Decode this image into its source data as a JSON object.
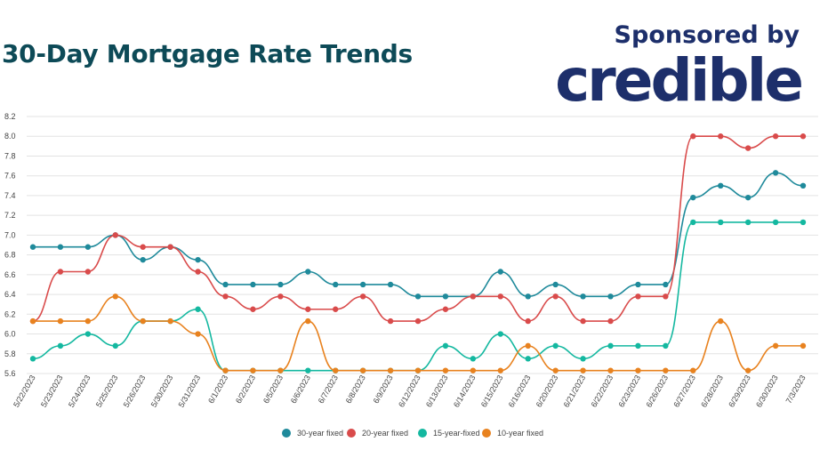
{
  "header": {
    "title": "30-Day Mortgage Rate Trends",
    "sponsor_text": "Sponsored by",
    "logo_text": "credible"
  },
  "chart_data": {
    "type": "line",
    "title": "30-Day Mortgage Rate Trends",
    "xlabel": "",
    "ylabel": "",
    "ylim": [
      5.6,
      8.2
    ],
    "yticks": [
      "8.2",
      "8.0",
      "7.8",
      "7.6",
      "7.4",
      "7.2",
      "7.0",
      "6.8",
      "6.6",
      "6.4",
      "6.2",
      "6.0",
      "5.8",
      "5.6"
    ],
    "grid": true,
    "legend_position": "bottom",
    "categories": [
      "5/22/2023",
      "5/23/2023",
      "5/24/2023",
      "5/25/2023",
      "5/26/2023",
      "5/30/2023",
      "5/31/2023",
      "6/1/2023",
      "6/2/2023",
      "6/5/2023",
      "6/6/2023",
      "6/7/2023",
      "6/8/2023",
      "6/9/2023",
      "6/12/2023",
      "6/13/2023",
      "6/14/2023",
      "6/15/2023",
      "6/16/2023",
      "6/20/2023",
      "6/21/2023",
      "6/22/2023",
      "6/23/2023",
      "6/26/2023",
      "6/27/2023",
      "6/28/2023",
      "6/29/2023",
      "6/30/2023",
      "7/3/2023"
    ],
    "series": [
      {
        "name": "30-year fixed",
        "color": "#1f8a9b",
        "values": [
          6.88,
          6.88,
          6.88,
          7.0,
          6.75,
          6.88,
          6.75,
          6.5,
          6.5,
          6.5,
          6.63,
          6.5,
          6.5,
          6.5,
          6.38,
          6.38,
          6.38,
          6.63,
          6.38,
          6.5,
          6.38,
          6.38,
          6.5,
          6.5,
          7.38,
          7.5,
          7.38,
          7.63,
          7.5
        ]
      },
      {
        "name": "20-year fixed",
        "color": "#d94b4b",
        "values": [
          6.13,
          6.63,
          6.63,
          7.0,
          6.88,
          6.88,
          6.63,
          6.38,
          6.25,
          6.38,
          6.25,
          6.25,
          6.38,
          6.13,
          6.13,
          6.25,
          6.38,
          6.38,
          6.13,
          6.38,
          6.13,
          6.13,
          6.38,
          6.38,
          8.0,
          8.0,
          7.88,
          8.0,
          8.0
        ]
      },
      {
        "name": "15-year-fixed",
        "color": "#14b8a0",
        "values": [
          5.75,
          5.88,
          6.0,
          5.88,
          6.13,
          6.13,
          6.25,
          5.63,
          5.63,
          5.63,
          5.63,
          5.63,
          5.63,
          5.63,
          5.63,
          5.88,
          5.75,
          6.0,
          5.75,
          5.88,
          5.75,
          5.88,
          5.88,
          5.88,
          7.13,
          7.13,
          7.13,
          7.13,
          7.13
        ]
      },
      {
        "name": "10-year fixed",
        "color": "#e8821f",
        "values": [
          6.13,
          6.13,
          6.13,
          6.38,
          6.13,
          6.13,
          6.0,
          5.63,
          5.63,
          5.63,
          6.13,
          5.63,
          5.63,
          5.63,
          5.63,
          5.63,
          5.63,
          5.63,
          5.88,
          5.63,
          5.63,
          5.63,
          5.63,
          5.63,
          5.63,
          6.13,
          5.63,
          5.88,
          5.88
        ]
      }
    ]
  }
}
